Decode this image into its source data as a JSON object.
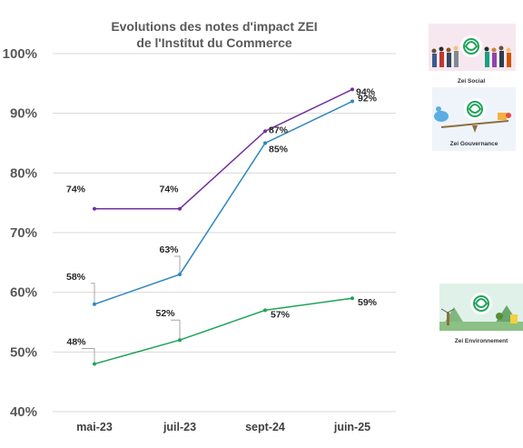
{
  "chart_data": {
    "type": "line",
    "title_line1": "Evolutions des notes d'impact ZEI",
    "title_line2": "de l'Institut du Commerce",
    "categories": [
      "mai-23",
      "juil-23",
      "sept-24",
      "juin-25"
    ],
    "ylim": [
      40,
      100
    ],
    "yticks": [
      "40%",
      "50%",
      "60%",
      "70%",
      "80%",
      "90%",
      "100%"
    ],
    "grid": true,
    "series": [
      {
        "values": [
          74,
          74,
          87,
          94
        ],
        "labels": [
          "74%",
          "74%",
          "87%",
          "94%"
        ],
        "color": "#7030a0"
      },
      {
        "values": [
          58,
          63,
          85,
          92
        ],
        "labels": [
          "58%",
          "63%",
          "85%",
          "92%"
        ],
        "color": "#2e86c1"
      },
      {
        "values": [
          48,
          52,
          57,
          59
        ],
        "labels": [
          "48%",
          "52%",
          "57%",
          "59%"
        ],
        "color": "#1fa35a"
      }
    ]
  },
  "badges": [
    {
      "caption": "Zei Social",
      "icon": "people-crowd-icon"
    },
    {
      "caption": "Zei Gouvernance",
      "icon": "balance-scale-icon"
    },
    {
      "caption": "Zei Environnement",
      "icon": "landscape-icon"
    }
  ]
}
